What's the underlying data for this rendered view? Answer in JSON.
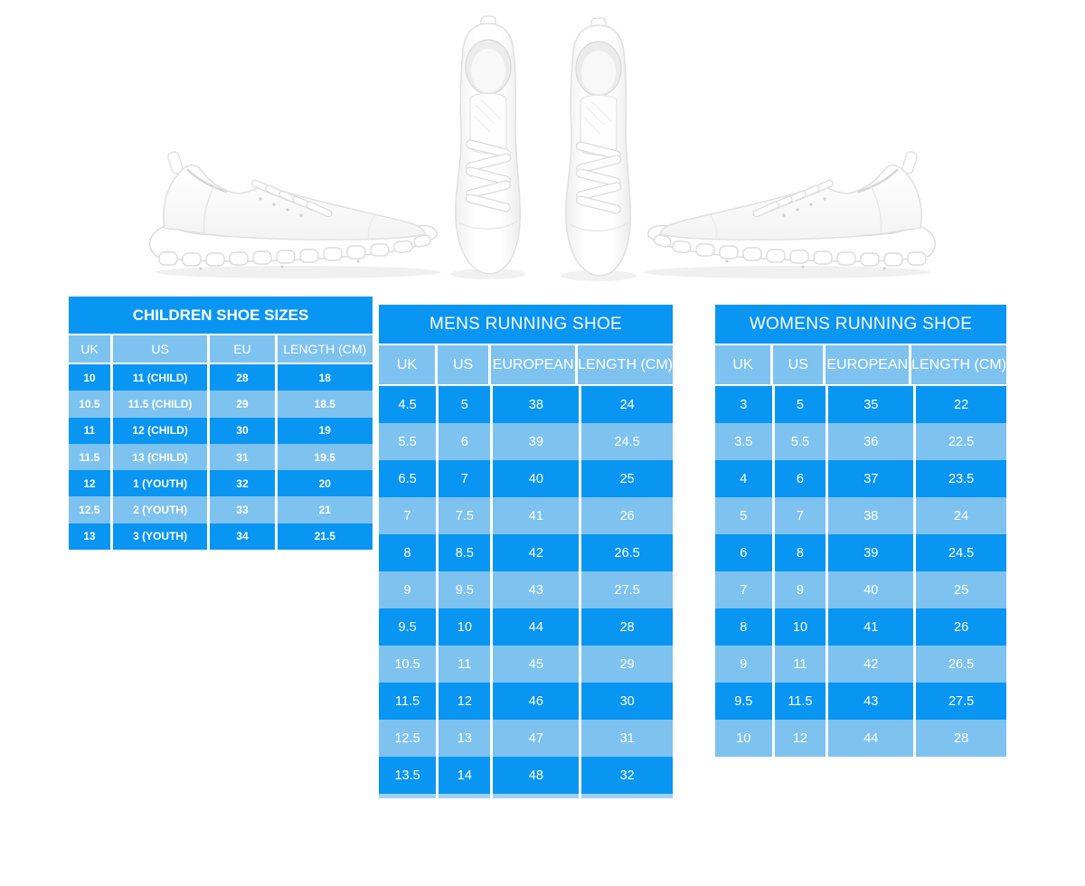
{
  "colors": {
    "blue": "#0995f2",
    "blue_light": "#7ec2f0",
    "background": "#ffffff",
    "table_text": "#ffffff"
  },
  "hero": {
    "left_image": "white-running-sneaker-side-view-facing-right",
    "center_image": "white-running-sneakers-pair-top-view",
    "right_image": "white-running-sneaker-side-view-facing-left"
  },
  "tables": [
    {
      "id": "children",
      "title": "CHILDREN SHOE SIZES",
      "columns": [
        "UK",
        "US",
        "EU",
        "LENGTH (CM)"
      ],
      "rows": [
        [
          "10",
          "11 (CHILD)",
          "28",
          "18"
        ],
        [
          "10.5",
          "11.5 (CHILD)",
          "29",
          "18.5"
        ],
        [
          "11",
          "12 (CHILD)",
          "30",
          "19"
        ],
        [
          "11.5",
          "13 (CHILD)",
          "31",
          "19.5"
        ],
        [
          "12",
          "1 (YOUTH)",
          "32",
          "20"
        ],
        [
          "12.5",
          "2 (YOUTH)",
          "33",
          "21"
        ],
        [
          "13",
          "3 (YOUTH)",
          "34",
          "21.5"
        ]
      ]
    },
    {
      "id": "mens",
      "title": "MENS RUNNING SHOE",
      "columns": [
        "UK",
        "US",
        "EUROPEAN",
        "LENGTH (CM)"
      ],
      "rows": [
        [
          "4.5",
          "5",
          "38",
          "24"
        ],
        [
          "5.5",
          "6",
          "39",
          "24.5"
        ],
        [
          "6.5",
          "7",
          "40",
          "25"
        ],
        [
          "7",
          "7.5",
          "41",
          "26"
        ],
        [
          "8",
          "8.5",
          "42",
          "26.5"
        ],
        [
          "9",
          "9.5",
          "43",
          "27.5"
        ],
        [
          "9.5",
          "10",
          "44",
          "28"
        ],
        [
          "10.5",
          "11",
          "45",
          "29"
        ],
        [
          "11.5",
          "12",
          "46",
          "30"
        ],
        [
          "12.5",
          "13",
          "47",
          "31"
        ],
        [
          "13.5",
          "14",
          "48",
          "32"
        ]
      ]
    },
    {
      "id": "womens",
      "title": "WOMENS RUNNING SHOE",
      "columns": [
        "UK",
        "US",
        "EUROPEAN",
        "LENGTH (CM)"
      ],
      "rows": [
        [
          "3",
          "5",
          "35",
          "22"
        ],
        [
          "3.5",
          "5.5",
          "36",
          "22.5"
        ],
        [
          "4",
          "6",
          "37",
          "23.5"
        ],
        [
          "5",
          "7",
          "38",
          "24"
        ],
        [
          "6",
          "8",
          "39",
          "24.5"
        ],
        [
          "7",
          "9",
          "40",
          "25"
        ],
        [
          "8",
          "10",
          "41",
          "26"
        ],
        [
          "9",
          "11",
          "42",
          "26.5"
        ],
        [
          "9.5",
          "11.5",
          "43",
          "27.5"
        ],
        [
          "10",
          "12",
          "44",
          "28"
        ]
      ]
    }
  ]
}
